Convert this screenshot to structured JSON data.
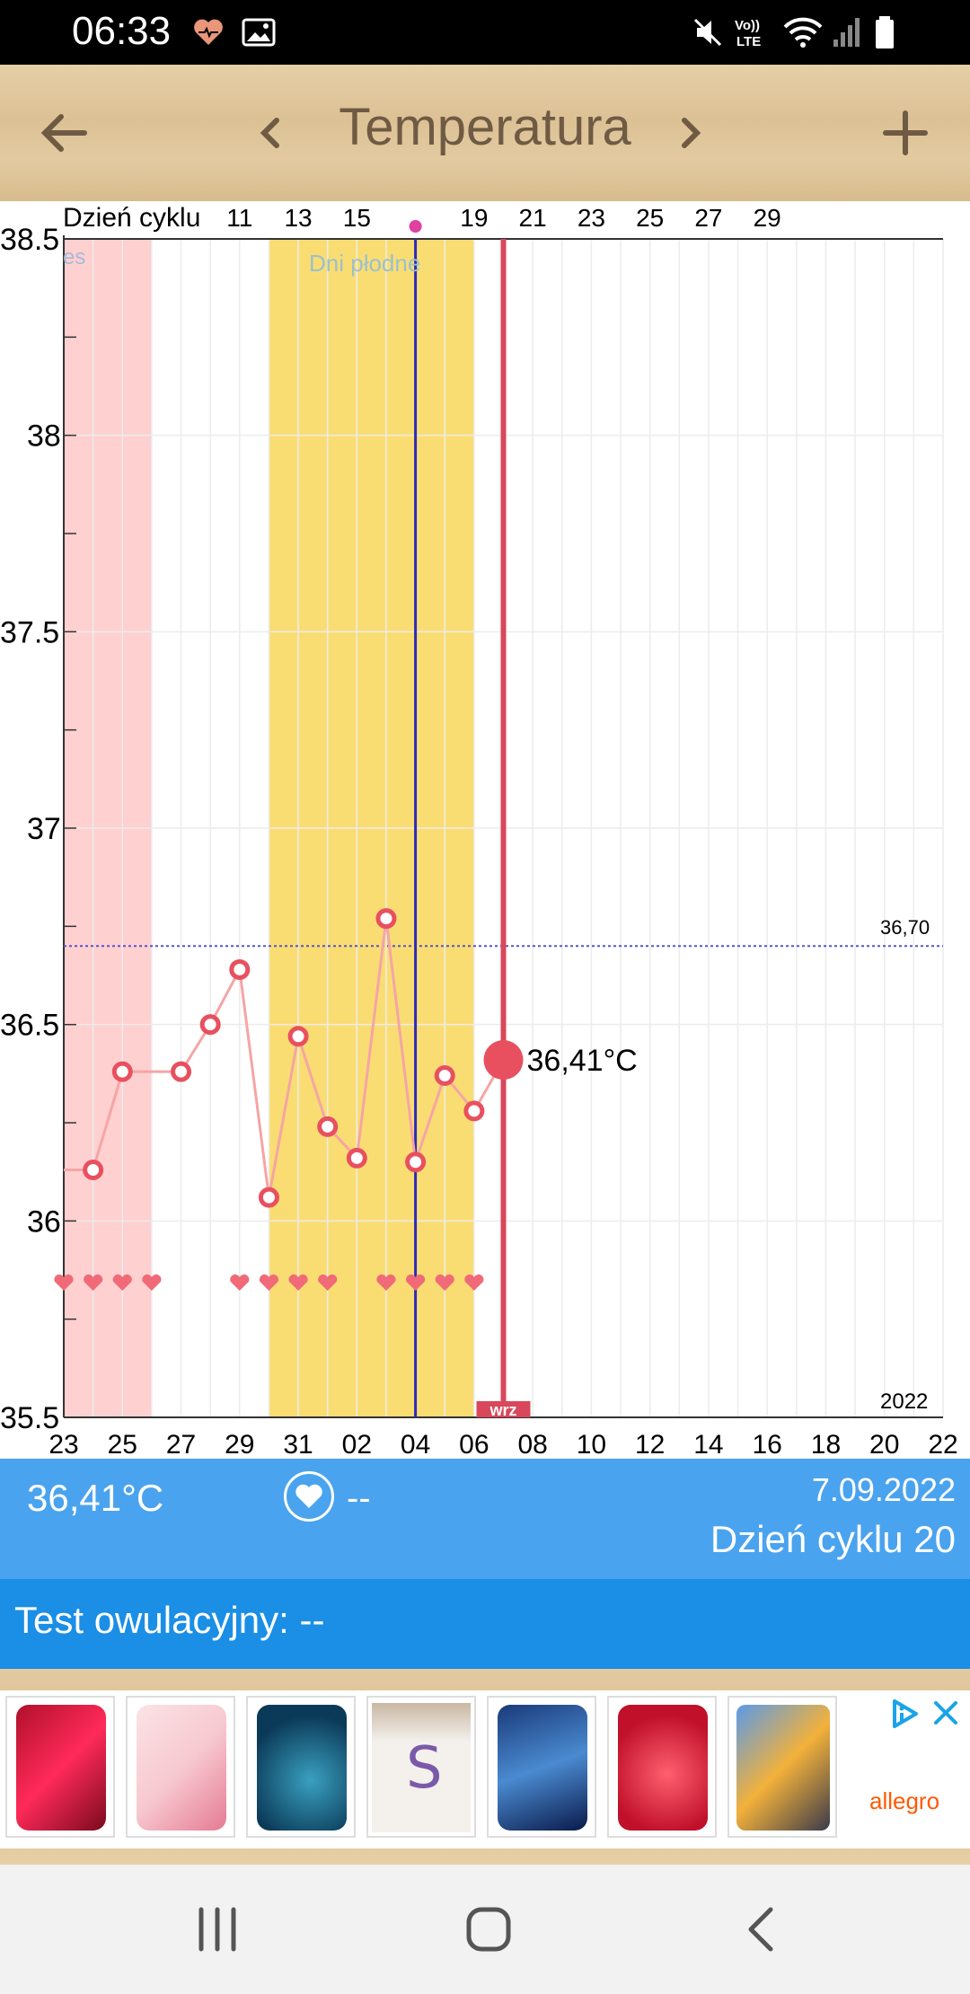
{
  "status_bar": {
    "time": "06:33",
    "icons": [
      "heart-health-icon",
      "gallery-icon",
      "mute-icon",
      "volte-icon",
      "wifi-icon",
      "signal-icon",
      "battery-icon"
    ],
    "volte_label": "Vo))\nLTE"
  },
  "header": {
    "title": "Temperatura",
    "back_icon": "arrow-left-icon",
    "prev_icon": "chevron-left-icon",
    "next_icon": "chevron-right-icon",
    "add_icon": "plus-icon"
  },
  "chart": {
    "top_axis_label": "Dzień cyklu",
    "fertile_label": "Dni płodne",
    "period_label_partial": "es",
    "coverline_label": "36,70",
    "year_label": "2022",
    "current_label": "36,41°C",
    "marker_label": "wrz",
    "colors": {
      "period": "#ffd0d0",
      "fertile": "#fadd72",
      "line": "#f5a5a5",
      "point": "#e8505f",
      "ovulation_line": "#2b2bb8",
      "today_line": "#d9475a",
      "heart": "#f06a78"
    }
  },
  "chart_data": {
    "type": "line",
    "title": "Temperatura",
    "xlabel": "",
    "ylabel": "",
    "ylim": [
      35.5,
      38.5
    ],
    "y_ticks": [
      "38.5",
      "38",
      "37.5",
      "37",
      "36.5",
      "36",
      "35.5"
    ],
    "x_ticks": [
      "23",
      "25",
      "27",
      "29",
      "31",
      "02",
      "04",
      "06",
      "08",
      "10",
      "12",
      "14",
      "16",
      "18",
      "20",
      "22"
    ],
    "cycle_ticks": [
      "11",
      "13",
      "15",
      "19",
      "21",
      "23",
      "25",
      "27",
      "29"
    ],
    "coverline": 36.7,
    "grid": true,
    "series": [
      {
        "points": [
          {
            "x": "24",
            "y": 36.13
          },
          {
            "x": "25",
            "y": 36.38
          },
          {
            "x": "27",
            "y": 36.38
          },
          {
            "x": "28",
            "y": 36.5
          },
          {
            "x": "29",
            "y": 36.64
          },
          {
            "x": "30",
            "y": 36.06
          },
          {
            "x": "31",
            "y": 36.47
          },
          {
            "x": "01",
            "y": 36.24
          },
          {
            "x": "02",
            "y": 36.16
          },
          {
            "x": "03",
            "y": 36.77
          },
          {
            "x": "04",
            "y": 36.15
          },
          {
            "x": "05",
            "y": 36.37
          },
          {
            "x": "06",
            "y": 36.28
          },
          {
            "x": "07",
            "y": 36.41
          }
        ]
      }
    ],
    "heart_days": [
      "22",
      "24",
      "25",
      "26",
      "29",
      "30",
      "31",
      "01",
      "03",
      "04",
      "05",
      "06"
    ]
  },
  "info": {
    "temperature": "36,41°C",
    "intercourse_value": "--",
    "date": "7.09.2022",
    "cycle_day": "Dzień cyklu 20",
    "ovulation_test": "Test owulacyjny: --"
  },
  "ad": {
    "brand": "allegro",
    "adchoices_icon": "adchoices-icon",
    "close_icon": "close-icon",
    "items": [
      "phone-red",
      "phone-pink",
      "phone-blue",
      "samsung-box",
      "phone-xiaomi",
      "phone-red-2",
      "phone-poco"
    ]
  },
  "nav": {
    "recents_icon": "recents-icon",
    "home_icon": "home-icon",
    "back_icon": "back-icon"
  }
}
